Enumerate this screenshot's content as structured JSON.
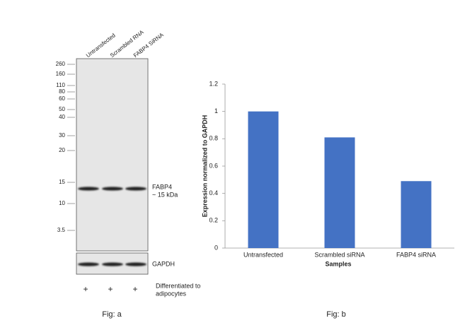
{
  "blot": {
    "lanes": [
      "Untransfected",
      "Scrambled RNA",
      "FABP4 SiRNA"
    ],
    "markers": [
      "260",
      "160",
      "110",
      "80",
      "60",
      "50",
      "40",
      "30",
      "20",
      "15",
      "10",
      "3.5"
    ],
    "band_label": "FABP4",
    "band_size": "~ 15 kDa",
    "loading_label": "GAPDH",
    "treatment": [
      "+",
      "+",
      "+"
    ],
    "treatment_label": [
      "Differentiated to",
      "adipocytes"
    ],
    "caption": "Fig: a"
  },
  "chart_data": {
    "type": "bar",
    "categories": [
      "Untransfected",
      "Scrambled siRNA",
      "FABP4 siRNA"
    ],
    "values": [
      1,
      0.81,
      0.49
    ],
    "color": "#4472c4",
    "ylim": [
      0,
      1.2
    ],
    "yticks": [
      0,
      0.2,
      0.4,
      0.6,
      0.8,
      1,
      1.2
    ],
    "xlabel": "Samples",
    "ylabel": "Expression normalized to GAPDH",
    "caption": "Fig: b"
  }
}
